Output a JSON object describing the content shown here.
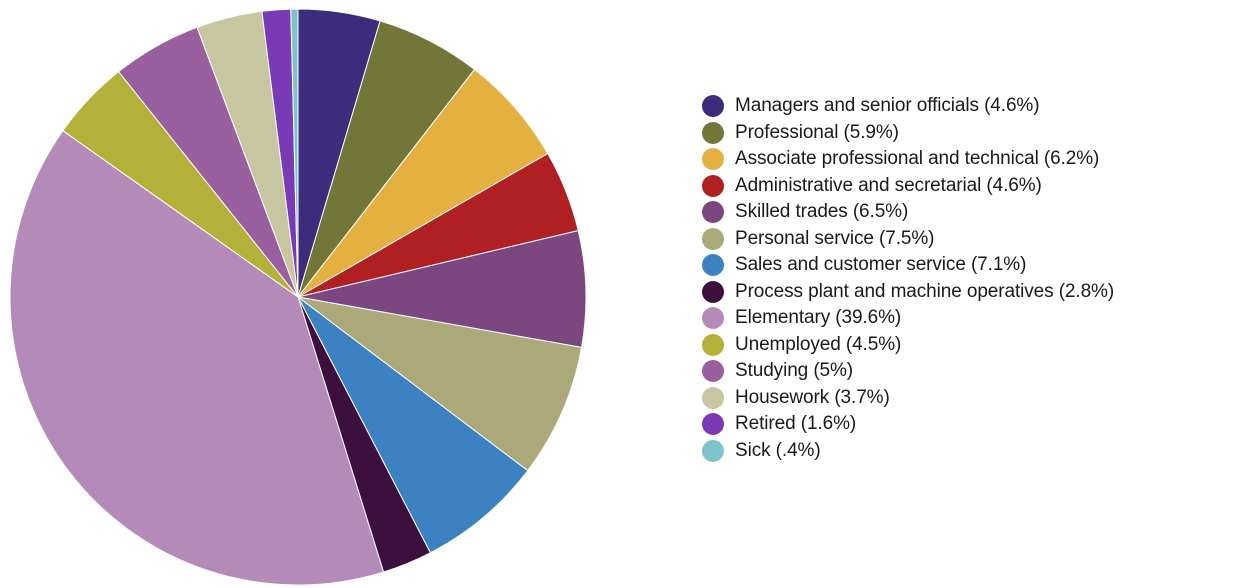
{
  "chart_data": {
    "type": "pie",
    "title": "",
    "start_angle_deg": 0,
    "direction": "clockwise",
    "legend_position": "right",
    "slices": [
      {
        "label": "Managers and senior officials (4.6%)",
        "value": 4.6,
        "color": "#3d2c7c"
      },
      {
        "label": "Professional (5.9%)",
        "value": 5.9,
        "color": "#737639"
      },
      {
        "label": "Associate professional and technical (6.2%)",
        "value": 6.2,
        "color": "#e4b03f"
      },
      {
        "label": "Administrative and secretarial (4.6%)",
        "value": 4.6,
        "color": "#b01f22"
      },
      {
        "label": "Skilled trades (6.5%)",
        "value": 6.5,
        "color": "#7c4680"
      },
      {
        "label": "Personal service (7.5%)",
        "value": 7.5,
        "color": "#aba97a"
      },
      {
        "label": "Sales and customer service (7.1%)",
        "value": 7.1,
        "color": "#3c82c2"
      },
      {
        "label": "Process plant and machine operatives (2.8%)",
        "value": 2.8,
        "color": "#3d0f3e"
      },
      {
        "label": "Elementary (39.6%)",
        "value": 39.6,
        "color": "#b48ab8"
      },
      {
        "label": "Unemployed (4.5%)",
        "value": 4.5,
        "color": "#b4b13a"
      },
      {
        "label": "Studying (5%)",
        "value": 5.0,
        "color": "#9a5f9e"
      },
      {
        "label": "Housework (3.7%)",
        "value": 3.7,
        "color": "#c8c6a0"
      },
      {
        "label": "Retired (1.6%)",
        "value": 1.6,
        "color": "#7a3ab5"
      },
      {
        "label": "Sick (.4%)",
        "value": 0.4,
        "color": "#7cc3cb"
      }
    ]
  }
}
